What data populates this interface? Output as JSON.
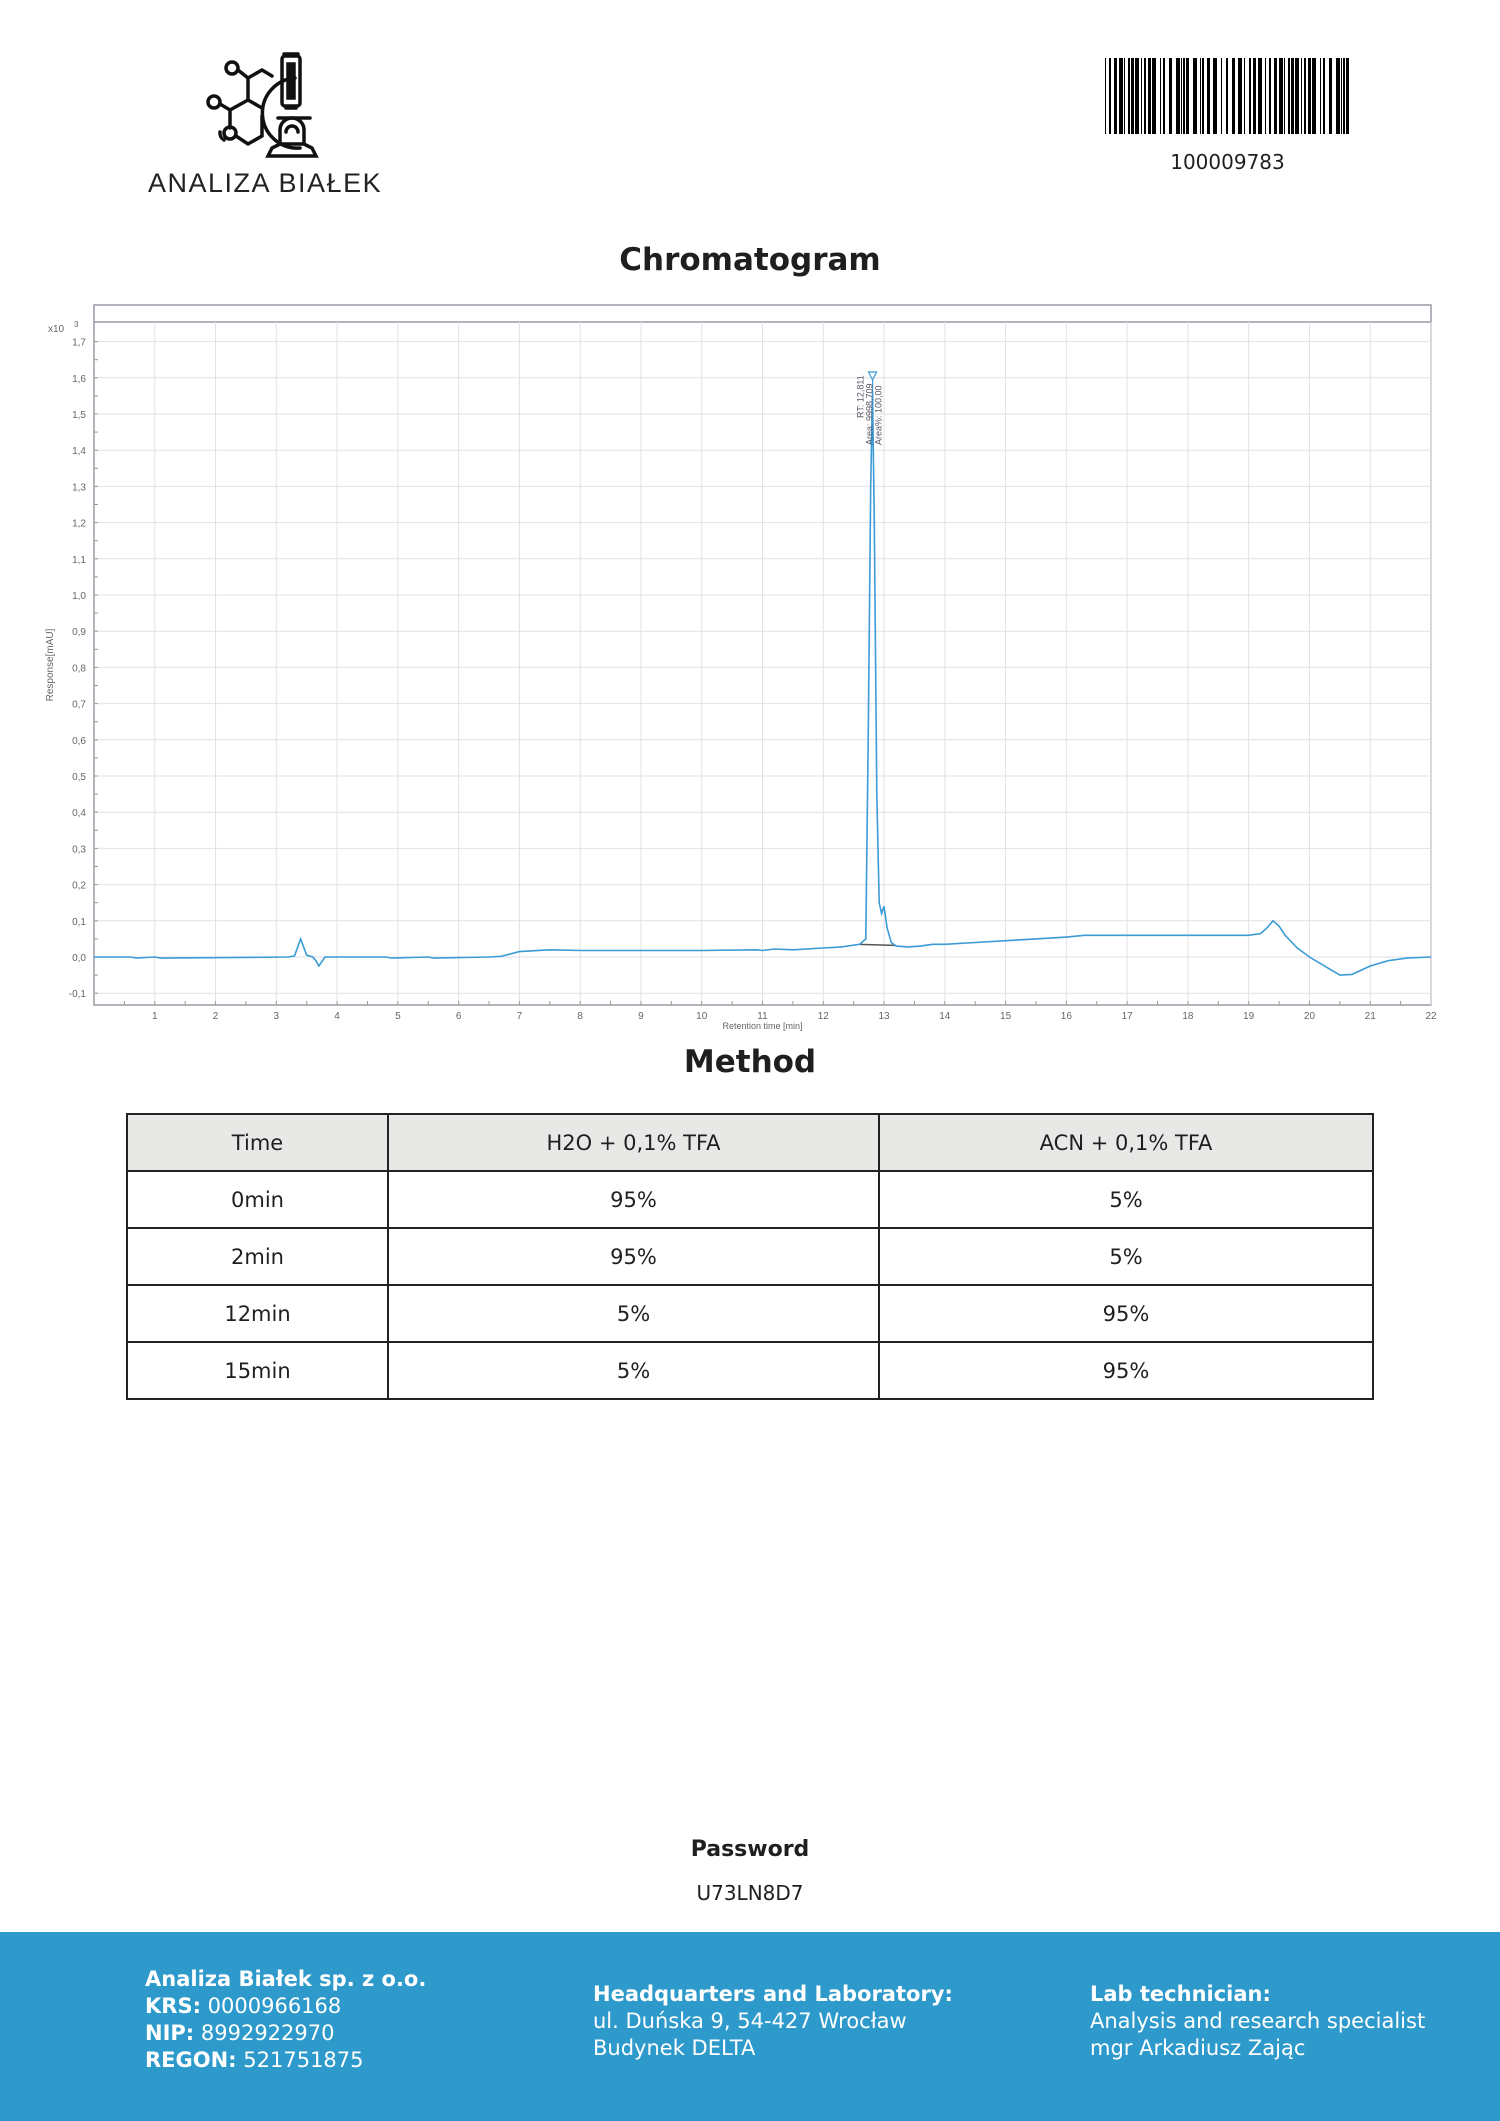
{
  "header": {
    "logo_text": "ANALIZA BIAŁEK",
    "logo_icon": "molecule-microscope-icon",
    "barcode_number": "100009783"
  },
  "chromatogram": {
    "title": "Chromatogram"
  },
  "chart_data": {
    "type": "line",
    "xlabel": "Retention time [min]",
    "ylabel": "Response[mAU]",
    "y_multiplier_label": "x10",
    "y_multiplier_exp": "3",
    "xlim": [
      0,
      22
    ],
    "ylim": [
      -0.14,
      1.75
    ],
    "x_ticks": [
      "1",
      "2",
      "3",
      "4",
      "5",
      "6",
      "7",
      "8",
      "9",
      "10",
      "11",
      "12",
      "13",
      "14",
      "15",
      "16",
      "17",
      "18",
      "19",
      "20",
      "21",
      "22"
    ],
    "y_ticks": [
      "-0,1",
      "0,0",
      "0,1",
      "0,2",
      "0,3",
      "0,4",
      "0,5",
      "0,6",
      "0,7",
      "0,8",
      "0,9",
      "1,0",
      "1,1",
      "1,2",
      "1,3",
      "1,4",
      "1,5",
      "1,6",
      "1,7"
    ],
    "grid": true,
    "line_color": "#3a9bd5",
    "baseline_color": "#555555",
    "series": [
      {
        "x": [
          0,
          0.6,
          0.7,
          1.0,
          1.1,
          3.2,
          3.3,
          3.4,
          3.5,
          3.6,
          3.65,
          3.7,
          3.8,
          4.8,
          4.9,
          5.5,
          5.6,
          6.5,
          6.7,
          7.0,
          7.5,
          8.0,
          9,
          10,
          10.9,
          11.0,
          11.2,
          11.5,
          12.0,
          12.3,
          12.6,
          12.7,
          12.74,
          12.78,
          12.81,
          12.84,
          12.88,
          12.92,
          12.96,
          13.0,
          13.05,
          13.12,
          13.2,
          13.4,
          13.6,
          13.8,
          14.0,
          14.5,
          15.0,
          15.5,
          16.0,
          16.3,
          17,
          18,
          19.0,
          19.2,
          19.3,
          19.4,
          19.5,
          19.6,
          19.8,
          20.0,
          20.3,
          20.5,
          20.7,
          21.0,
          21.3,
          21.6,
          22.0
        ],
        "y": [
          0,
          0,
          -0.003,
          0,
          -0.003,
          0,
          0.003,
          0.05,
          0.005,
          0.0,
          -0.01,
          -0.025,
          0,
          0,
          -0.003,
          0,
          -0.003,
          0,
          0.002,
          0.015,
          0.02,
          0.018,
          0.018,
          0.018,
          0.02,
          0.018,
          0.022,
          0.02,
          0.025,
          0.028,
          0.035,
          0.05,
          0.6,
          1.3,
          1.56,
          1.2,
          0.45,
          0.15,
          0.12,
          0.14,
          0.08,
          0.04,
          0.03,
          0.028,
          0.03,
          0.035,
          0.035,
          0.04,
          0.045,
          0.05,
          0.055,
          0.06,
          0.06,
          0.06,
          0.06,
          0.065,
          0.08,
          0.1,
          0.085,
          0.06,
          0.025,
          0.0,
          -0.03,
          -0.05,
          -0.048,
          -0.025,
          -0.01,
          -0.003,
          0
        ]
      }
    ],
    "baseline": {
      "x": [
        12.6,
        13.2
      ],
      "y": [
        0.035,
        0.032
      ]
    },
    "peak_annotation": {
      "rt_x": 12.811,
      "lines": [
        "RT: 12,811",
        "Area: 9998,709",
        "Area%: 100,00"
      ]
    }
  },
  "method": {
    "title": "Method",
    "columns": [
      "Time",
      "H2O + 0,1% TFA",
      "ACN + 0,1% TFA"
    ],
    "rows": [
      [
        "0min",
        "95%",
        "5%"
      ],
      [
        "2min",
        "95%",
        "5%"
      ],
      [
        "12min",
        "5%",
        "95%"
      ],
      [
        "15min",
        "5%",
        "95%"
      ]
    ]
  },
  "password": {
    "label": "Password",
    "value": "U73LN8D7"
  },
  "footer": {
    "background": "#2d9acb",
    "company": "Analiza Białek sp. z o.o.",
    "krs_label": "KRS:",
    "krs": "0000966168",
    "nip_label": "NIP:",
    "nip": "8992922970",
    "regon_label": "REGON:",
    "regon": "521751875",
    "hq_title": "Headquarters and Laboratory:",
    "hq_line1": "ul. Duńska 9, 54-427 Wrocław",
    "hq_line2": "Budynek DELTA",
    "lab_title": "Lab technician:",
    "lab_line1": "Analysis and research specialist",
    "lab_line2": "mgr Arkadiusz Zając"
  }
}
